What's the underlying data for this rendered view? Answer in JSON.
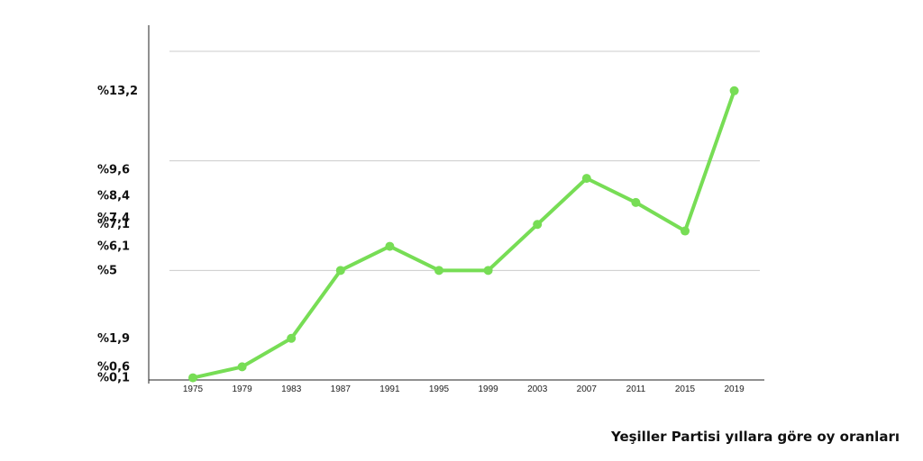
{
  "caption": "Yeşiller Partisi yıllara göre oy oranları",
  "chart_data": {
    "type": "line",
    "title": "",
    "xlabel": "",
    "ylabel": "",
    "line_color": "#77dd55",
    "grid_color": "#cccccc",
    "x": [
      "1975",
      "1979",
      "1983",
      "1987",
      "1991",
      "1995",
      "1999",
      "2003",
      "2007",
      "2011",
      "2015",
      "2019"
    ],
    "values": [
      0.1,
      0.6,
      1.9,
      5.0,
      6.1,
      5.0,
      5.0,
      7.1,
      9.2,
      8.1,
      6.8,
      13.2
    ],
    "y_tick_labels": [
      {
        "label": "%13,2",
        "value": 13.2
      },
      {
        "label": "%9,6",
        "value": 9.6
      },
      {
        "label": "%8,4",
        "value": 8.4
      },
      {
        "label": "%7,4",
        "value": 7.4
      },
      {
        "label": "%7,1",
        "value": 7.1
      },
      {
        "label": "%6,1",
        "value": 6.1
      },
      {
        "label": "%5",
        "value": 5.0
      },
      {
        "label": "%1,9",
        "value": 1.9
      },
      {
        "label": "%0,6",
        "value": 0.6
      },
      {
        "label": "%0,1",
        "value": 0.1
      }
    ],
    "gridlines": [
      5.0,
      10.0,
      15.0
    ],
    "ylim": [
      0,
      15
    ],
    "grid": true,
    "legend": false
  }
}
